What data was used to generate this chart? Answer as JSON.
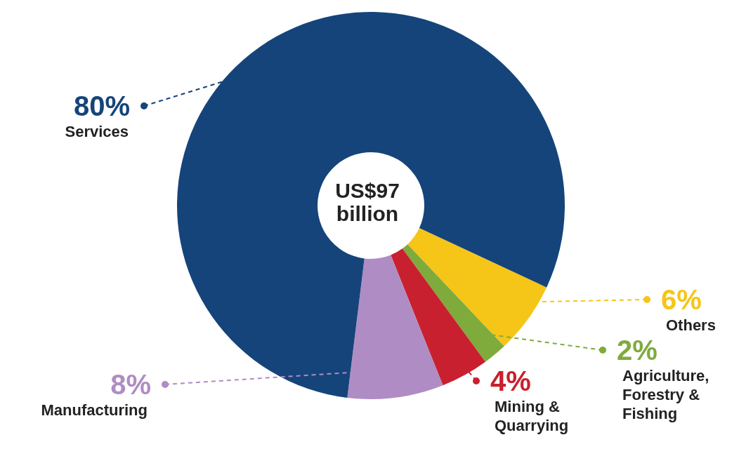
{
  "chart_data": {
    "type": "donut",
    "categories": [
      "Others",
      "Agriculture, Forestry & Fishing",
      "Mining & Quarrying",
      "Manufacturing",
      "Services"
    ],
    "values": [
      6,
      2,
      4,
      8,
      80
    ],
    "value_labels": [
      "6%",
      "2%",
      "4%",
      "8%",
      "80%"
    ],
    "colors": [
      "#f5c518",
      "#7fab3c",
      "#c8202e",
      "#b08cc4",
      "#15447a"
    ],
    "annotations": [
      "US$97 billion"
    ]
  }
}
